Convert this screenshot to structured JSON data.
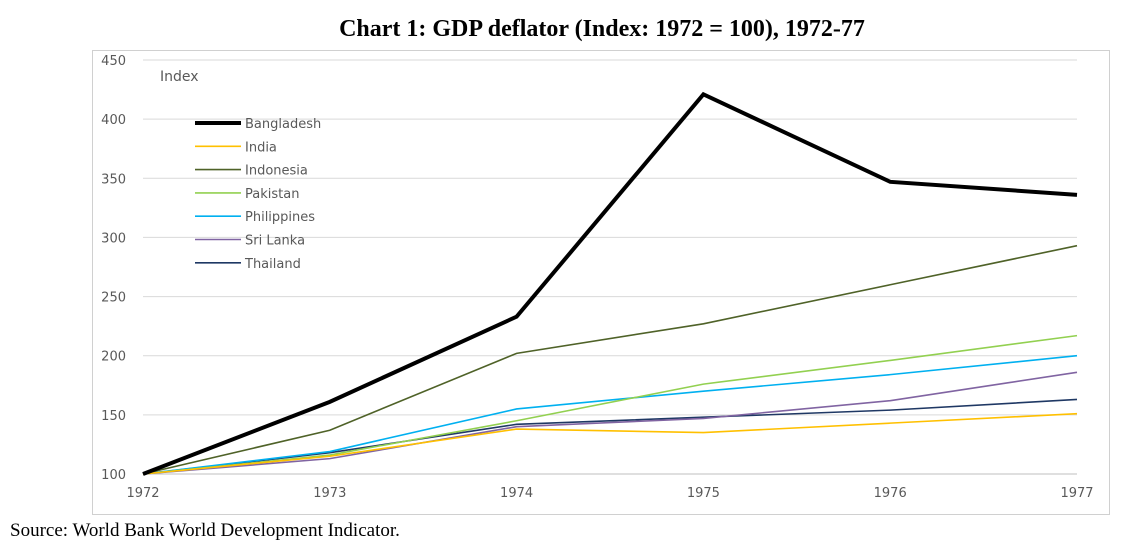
{
  "chart_data": {
    "type": "line",
    "title": "Chart 1: GDP deflator (Index: 1972 = 100), 1972-77",
    "ylabel": "Index",
    "x": [
      "1972",
      "1973",
      "1974",
      "1975",
      "1976",
      "1977"
    ],
    "ylim": [
      100,
      450
    ],
    "yticks": [
      100,
      150,
      200,
      250,
      300,
      350,
      400,
      450
    ],
    "grid": true,
    "legend_position": "top-left",
    "series": [
      {
        "name": "Bangladesh",
        "color": "#000000",
        "values": [
          100,
          161,
          233,
          421,
          347,
          336
        ]
      },
      {
        "name": "India",
        "color": "#ffc000",
        "values": [
          100,
          115,
          138,
          135,
          143,
          151
        ]
      },
      {
        "name": "Indonesia",
        "color": "#4f6228",
        "values": [
          100,
          137,
          202,
          227,
          260,
          293
        ]
      },
      {
        "name": "Pakistan",
        "color": "#92d050",
        "values": [
          100,
          116,
          145,
          176,
          196,
          217
        ]
      },
      {
        "name": "Philippines",
        "color": "#00b0f0",
        "values": [
          100,
          119,
          155,
          170,
          184,
          200
        ]
      },
      {
        "name": "Sri Lanka",
        "color": "#8064a2",
        "values": [
          100,
          113,
          140,
          147,
          162,
          186
        ]
      },
      {
        "name": "Thailand",
        "color": "#1f3864",
        "values": [
          100,
          118,
          142,
          148,
          154,
          163
        ]
      }
    ]
  },
  "source": "Source: World Bank World Development Indicator."
}
